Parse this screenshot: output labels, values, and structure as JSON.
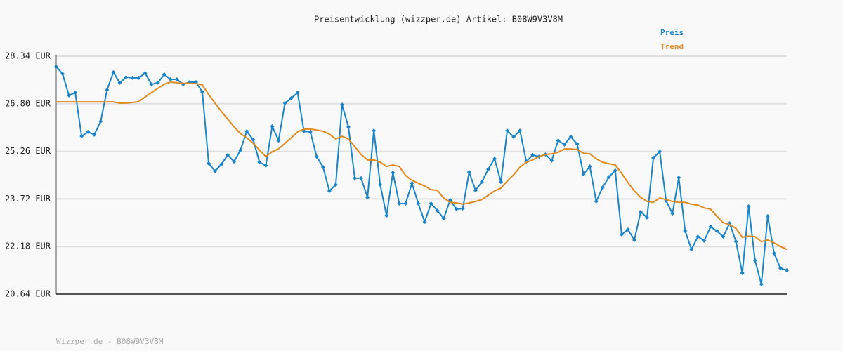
{
  "chart_data": {
    "type": "line",
    "title": "Preisentwicklung (wizzper.de) Artikel: B08W9V3V8M",
    "footer": "Wizzper.de - B08W9V3V8M",
    "ylim": [
      20.64,
      28.34
    ],
    "yticks": [
      {
        "value": 20.64,
        "label": "20.64 EUR"
      },
      {
        "value": 22.18,
        "label": "22.18 EUR"
      },
      {
        "value": 23.72,
        "label": "23.72 EUR"
      },
      {
        "value": 25.26,
        "label": "25.26 EUR"
      },
      {
        "value": 26.8,
        "label": "26.80 EUR"
      },
      {
        "value": 28.34,
        "label": "28.34 EUR"
      }
    ],
    "grid": true,
    "legend": "top-right",
    "series": [
      {
        "name": "Preis",
        "color": "#1a84c7",
        "markers": true,
        "values": [
          28.0,
          27.77,
          27.07,
          27.16,
          25.75,
          25.89,
          25.8,
          26.23,
          27.25,
          27.82,
          27.48,
          27.66,
          27.64,
          27.64,
          27.79,
          27.43,
          27.48,
          27.75,
          27.59,
          27.59,
          27.43,
          27.5,
          27.5,
          27.18,
          24.87,
          24.62,
          24.84,
          25.14,
          24.93,
          25.3,
          25.91,
          25.64,
          24.91,
          24.8,
          26.07,
          25.61,
          26.82,
          26.98,
          27.16,
          25.91,
          25.89,
          25.09,
          24.75,
          23.98,
          24.18,
          26.77,
          26.05,
          24.39,
          24.39,
          23.77,
          25.93,
          24.18,
          23.18,
          24.57,
          23.57,
          23.57,
          24.23,
          23.57,
          22.98,
          23.57,
          23.34,
          23.09,
          23.68,
          23.39,
          23.41,
          24.59,
          24.0,
          24.27,
          24.68,
          25.02,
          24.27,
          25.93,
          25.73,
          25.93,
          24.93,
          25.14,
          25.09,
          25.16,
          24.96,
          25.61,
          25.48,
          25.73,
          25.5,
          24.52,
          24.77,
          23.64,
          24.09,
          24.43,
          24.64,
          22.57,
          22.73,
          22.39,
          23.3,
          23.12,
          25.05,
          25.25,
          23.66,
          23.25,
          24.41,
          22.68,
          22.09,
          22.5,
          22.37,
          22.82,
          22.68,
          22.5,
          22.93,
          22.34,
          21.32,
          23.48,
          21.73,
          20.96,
          23.16,
          21.96,
          21.48,
          21.41
        ]
      },
      {
        "name": "Trend",
        "color": "#e0891f",
        "markers": false,
        "values": [
          26.86,
          26.86,
          26.86,
          26.86,
          26.86,
          26.86,
          26.86,
          26.86,
          26.86,
          26.86,
          26.82,
          26.82,
          26.84,
          26.87,
          27.02,
          27.16,
          27.3,
          27.43,
          27.5,
          27.48,
          27.46,
          27.46,
          27.45,
          27.41,
          27.1,
          26.82,
          26.55,
          26.3,
          26.05,
          25.84,
          25.7,
          25.52,
          25.3,
          25.09,
          25.25,
          25.34,
          25.52,
          25.7,
          25.89,
          25.98,
          25.98,
          25.95,
          25.91,
          25.82,
          25.66,
          25.75,
          25.66,
          25.41,
          25.16,
          24.98,
          24.98,
          24.91,
          24.77,
          24.82,
          24.77,
          24.48,
          24.32,
          24.23,
          24.14,
          24.02,
          24.0,
          23.75,
          23.61,
          23.59,
          23.55,
          23.59,
          23.64,
          23.7,
          23.84,
          23.98,
          24.07,
          24.3,
          24.5,
          24.75,
          24.91,
          24.98,
          25.09,
          25.16,
          25.18,
          25.23,
          25.34,
          25.34,
          25.32,
          25.2,
          25.18,
          25.02,
          24.91,
          24.86,
          24.82,
          24.55,
          24.25,
          23.98,
          23.77,
          23.64,
          23.61,
          23.75,
          23.7,
          23.64,
          23.61,
          23.61,
          23.55,
          23.52,
          23.43,
          23.39,
          23.16,
          22.95,
          22.89,
          22.77,
          22.48,
          22.52,
          22.5,
          22.34,
          22.39,
          22.3,
          22.18,
          22.09
        ]
      }
    ]
  }
}
